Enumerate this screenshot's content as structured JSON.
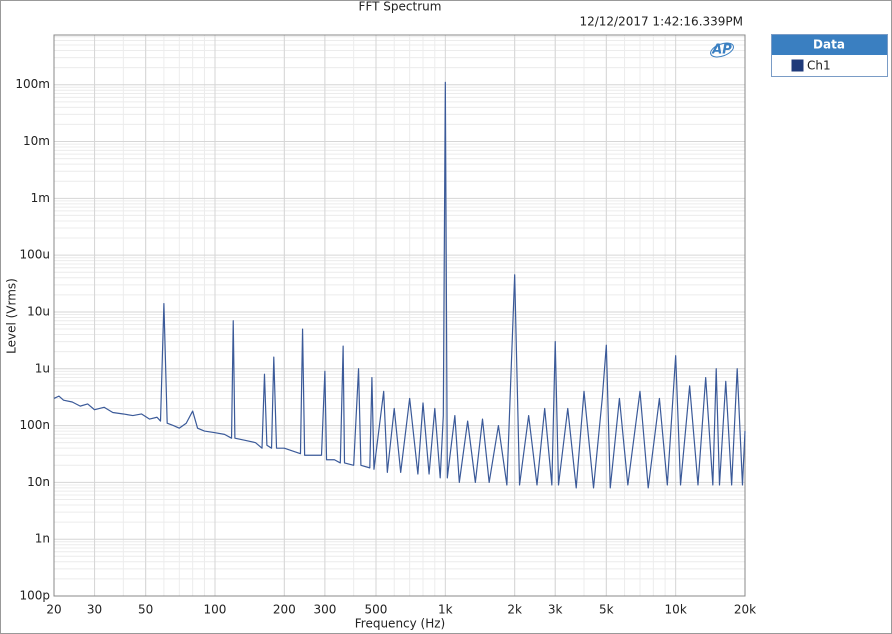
{
  "chart_data": {
    "type": "line",
    "title": "FFT Spectrum",
    "subtitle": "12/12/2017 1:42:16.339PM",
    "logo": "AP",
    "x_label": "Frequency (Hz)",
    "y_label": "Level (Vrms)",
    "legend_title": "Data",
    "legend_position": "right",
    "log_x": true,
    "log_y": true,
    "grid": true,
    "xlim": [
      20,
      20000
    ],
    "ylim": [
      1e-10,
      0.75
    ],
    "xticks": [
      20,
      30,
      50,
      100,
      200,
      300,
      500,
      {
        "value": 1000,
        "label": "1k"
      },
      {
        "value": 2000,
        "label": "2k"
      },
      {
        "value": 3000,
        "label": "3k"
      },
      {
        "value": 5000,
        "label": "5k"
      },
      {
        "value": 10000,
        "label": "10k"
      },
      {
        "value": 20000,
        "label": "20k"
      }
    ],
    "yticks": [
      {
        "value": 1e-10,
        "label": "100p"
      },
      {
        "value": 1e-09,
        "label": "1n"
      },
      {
        "value": 1e-08,
        "label": "10n"
      },
      {
        "value": 1e-07,
        "label": "100n"
      },
      {
        "value": 1e-06,
        "label": "1u"
      },
      {
        "value": 1e-05,
        "label": "10u"
      },
      {
        "value": 0.0001,
        "label": "100u"
      },
      {
        "value": 0.001,
        "label": "1m"
      },
      {
        "value": 0.01,
        "label": "10m"
      },
      {
        "value": 0.1,
        "label": "100m"
      }
    ],
    "series": [
      {
        "name": "Ch1",
        "color": "#3b5a99",
        "x": [
          20,
          21,
          22,
          24,
          26,
          28,
          30,
          33,
          36,
          40,
          44,
          48,
          52,
          56,
          58,
          60,
          62,
          66,
          70,
          75,
          80,
          84,
          90,
          100,
          110,
          118,
          120,
          122,
          135,
          150,
          160,
          164,
          168,
          176,
          180,
          185,
          200,
          220,
          235,
          240,
          245,
          270,
          290,
          300,
          305,
          330,
          350,
          360,
          365,
          400,
          420,
          430,
          470,
          480,
          490,
          540,
          560,
          600,
          640,
          700,
          760,
          800,
          850,
          900,
          950,
          980,
          1000,
          1020,
          1100,
          1150,
          1250,
          1350,
          1450,
          1550,
          1700,
          1850,
          2000,
          2100,
          2300,
          2500,
          2700,
          2900,
          3000,
          3100,
          3400,
          3700,
          4000,
          4400,
          4800,
          5000,
          5200,
          5700,
          6200,
          7000,
          7600,
          8500,
          9200,
          10000,
          10500,
          11500,
          12500,
          13500,
          14500,
          15000,
          15500,
          16500,
          17500,
          18500,
          19500,
          20000
        ],
        "values": [
          3e-07,
          3.3e-07,
          2.8e-07,
          2.6e-07,
          2.2e-07,
          2.4e-07,
          1.9e-07,
          2.1e-07,
          1.7e-07,
          1.6e-07,
          1.5e-07,
          1.6e-07,
          1.3e-07,
          1.4e-07,
          1.2e-07,
          1.4e-05,
          1.1e-07,
          1e-07,
          9e-08,
          1.1e-07,
          1.8e-07,
          9e-08,
          8e-08,
          7.5e-08,
          7e-08,
          6e-08,
          7e-06,
          6e-08,
          5.5e-08,
          5e-08,
          4e-08,
          8e-07,
          4.5e-08,
          4e-08,
          1.6e-06,
          4e-08,
          4e-08,
          3.5e-08,
          3.2e-08,
          5e-06,
          3e-08,
          3e-08,
          3e-08,
          9e-07,
          2.5e-08,
          2.5e-08,
          2.2e-08,
          2.5e-06,
          2.2e-08,
          2e-08,
          1e-06,
          2e-08,
          1.8e-08,
          7e-07,
          1.7e-08,
          4e-07,
          1.5e-08,
          2e-07,
          1.5e-08,
          3e-07,
          1.4e-08,
          2.5e-07,
          1.4e-08,
          2e-07,
          1.2e-08,
          1.5e-07,
          0.11,
          1.2e-08,
          1.5e-07,
          1e-08,
          1.2e-07,
          1e-08,
          1.3e-07,
          1e-08,
          1e-07,
          9e-09,
          4.5e-05,
          9e-09,
          1.5e-07,
          9e-09,
          2e-07,
          9e-09,
          3e-06,
          9e-09,
          2e-07,
          8e-09,
          4e-07,
          8e-09,
          3e-07,
          2.6e-06,
          8e-09,
          3e-07,
          9e-09,
          4e-07,
          8e-09,
          3e-07,
          9e-09,
          1.7e-06,
          9e-09,
          5e-07,
          9e-09,
          7e-07,
          9e-09,
          1e-06,
          9e-09,
          6e-07,
          9e-09,
          1e-06,
          9e-09,
          8e-08
        ]
      }
    ]
  }
}
